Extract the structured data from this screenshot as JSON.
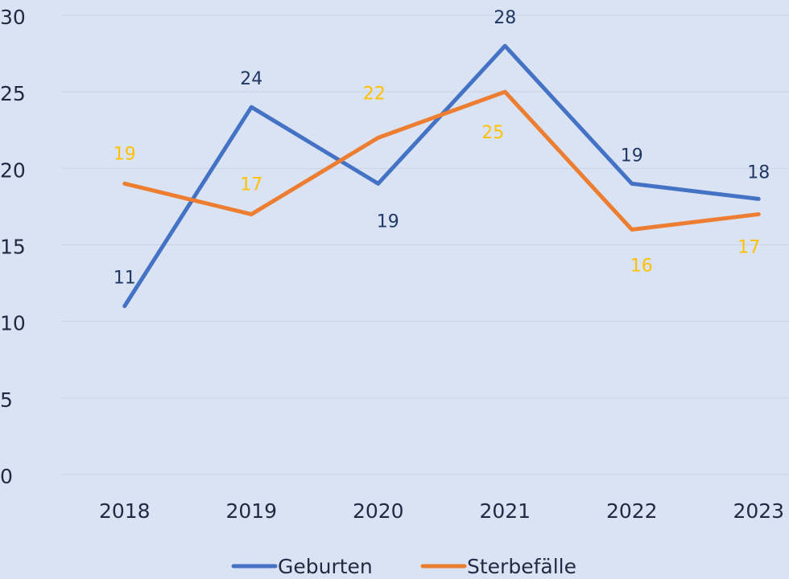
{
  "chart_data": {
    "type": "line",
    "categories": [
      "2018",
      "2019",
      "2020",
      "2021",
      "2022",
      "2023"
    ],
    "series": [
      {
        "name": "Geburten",
        "color": "#4472c4",
        "label_color": "#203864",
        "values": [
          11,
          24,
          19,
          28,
          19,
          18
        ]
      },
      {
        "name": "Sterbefälle",
        "color": "#ed7d31",
        "label_color": "#ffc000",
        "values": [
          19,
          17,
          22,
          25,
          16,
          17
        ]
      }
    ],
    "ylim": [
      0,
      30
    ],
    "yticks": [
      0,
      5,
      10,
      15,
      20,
      25,
      30
    ],
    "grid": true,
    "legend": "bottom"
  }
}
